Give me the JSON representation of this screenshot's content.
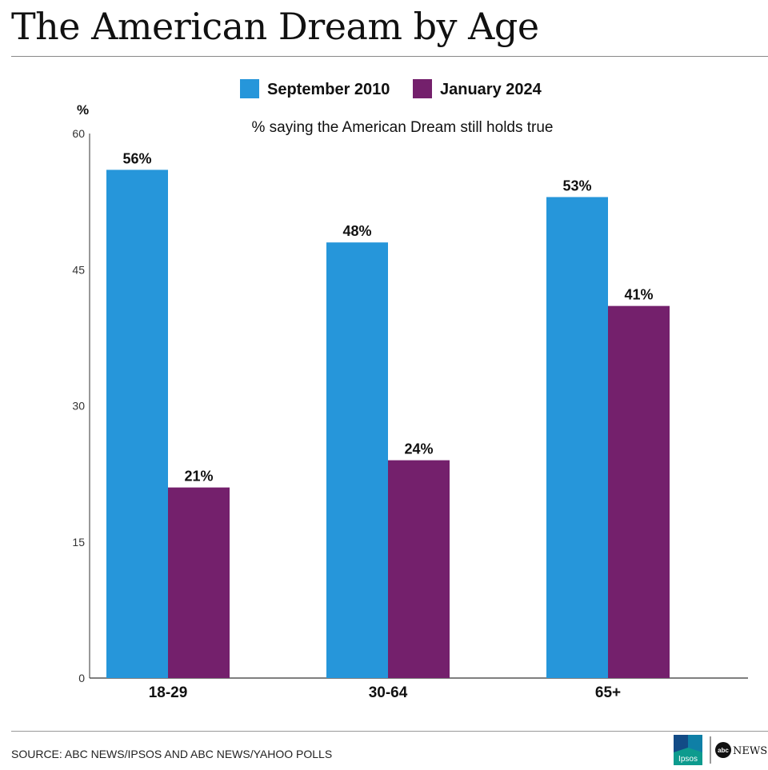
{
  "title": "The American Dream by Age",
  "source": "SOURCE: ABC NEWS/IPSOS AND ABC NEWS/YAHOO POLLS",
  "logos": {
    "ipsos": "Ipsos",
    "abc": "abc",
    "news": "NEWS"
  },
  "colors": {
    "series1": "#2696da",
    "series2": "#74206c",
    "axis": "#333333",
    "ipsos_bg": "#0d9b8e",
    "ipsos_dark": "#124b86"
  },
  "chart_data": {
    "type": "bar",
    "subtitle": "% saying the American Dream still holds true",
    "ylabel": "%",
    "ylim": [
      0,
      60
    ],
    "yticks": [
      0,
      15,
      30,
      45,
      60
    ],
    "categories": [
      "18-29",
      "30-64",
      "65+"
    ],
    "series": [
      {
        "name": "September 2010",
        "values": [
          56,
          48,
          53
        ],
        "labels": [
          "56%",
          "48%",
          "53%"
        ]
      },
      {
        "name": "January 2024",
        "values": [
          21,
          24,
          41
        ],
        "labels": [
          "21%",
          "24%",
          "41%"
        ]
      }
    ],
    "legend_position": "top-center",
    "grid": false
  }
}
